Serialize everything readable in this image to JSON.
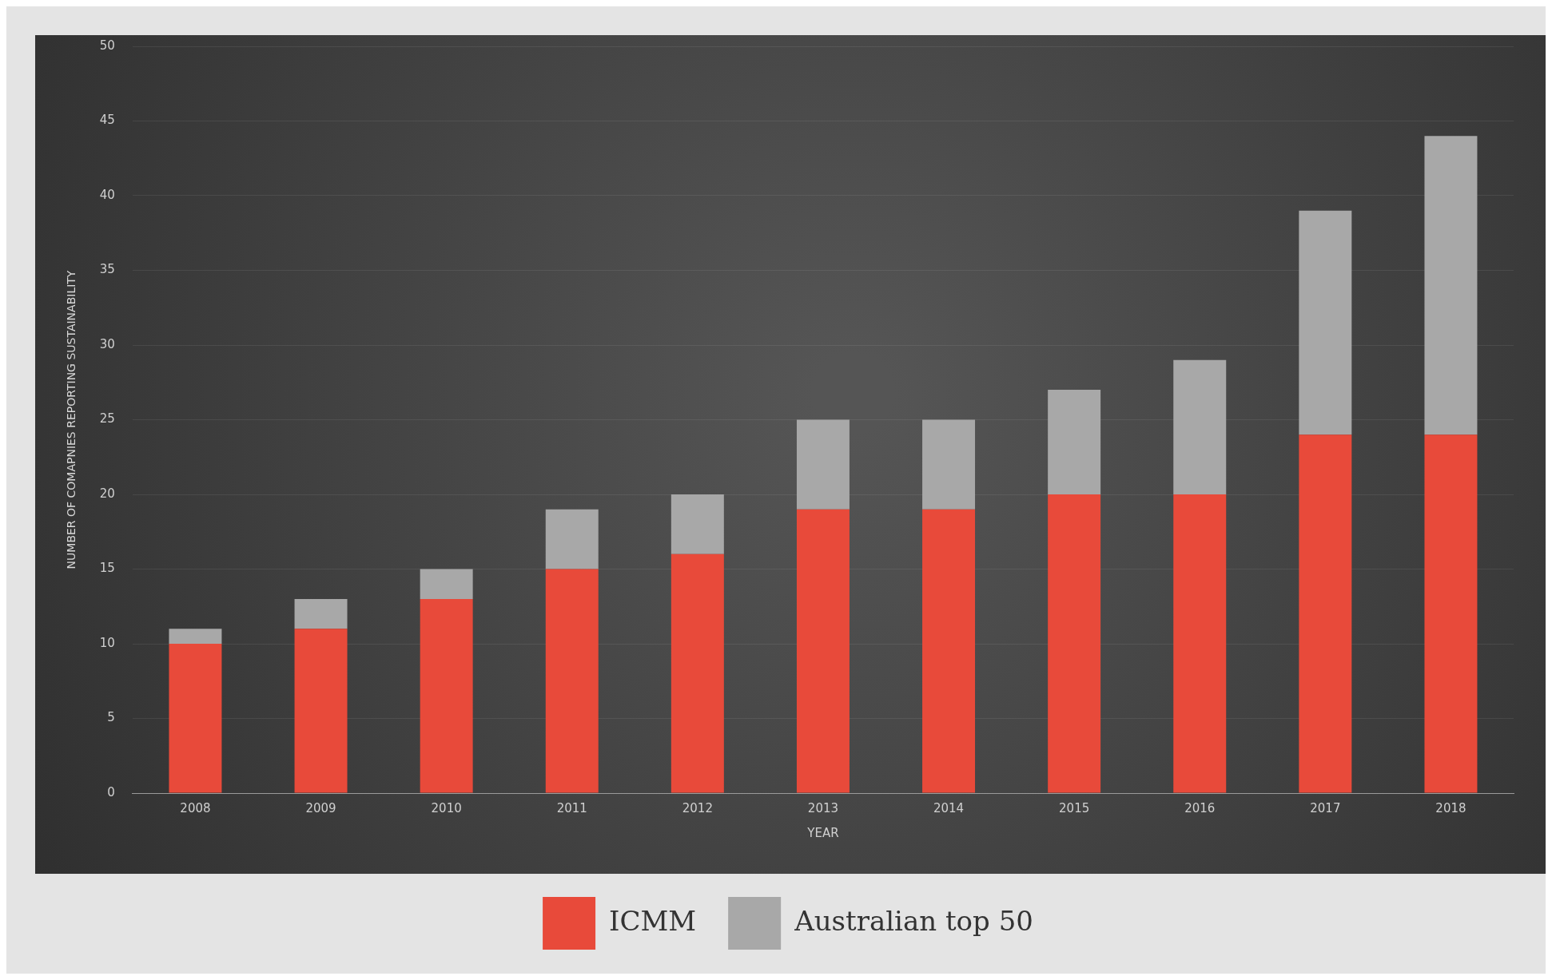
{
  "chart_data": {
    "type": "bar",
    "stacked": true,
    "xlabel": "YEAR",
    "ylabel": "NUMBER OF COMAPNIES REPORTING SUSTAINABILITY",
    "categories": [
      "2008",
      "2009",
      "2010",
      "2011",
      "2012",
      "2013",
      "2014",
      "2015",
      "2016",
      "2017",
      "2018"
    ],
    "series": [
      {
        "name": "ICMM",
        "color": "#e84a3a",
        "values": [
          10,
          11,
          13,
          15,
          16,
          19,
          19,
          20,
          20,
          24,
          24
        ]
      },
      {
        "name": "Australian top 50",
        "color": "#a8a8a8",
        "values": [
          1,
          2,
          2,
          4,
          4,
          6,
          6,
          7,
          9,
          15,
          20
        ]
      }
    ],
    "ylim": [
      0,
      50
    ],
    "yticks": [
      0,
      5,
      10,
      15,
      20,
      25,
      30,
      35,
      40,
      45,
      50
    ],
    "grid": "y",
    "legend": "bottom"
  }
}
